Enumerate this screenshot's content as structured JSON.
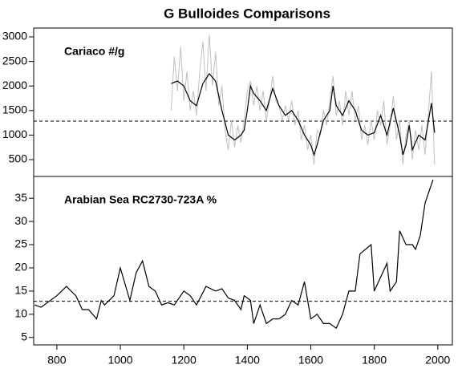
{
  "chart_data": [
    {
      "type": "line",
      "title": "G Bulloides Comparisons",
      "annotation": "Cariaco #/g",
      "xlim": [
        727,
        2046
      ],
      "ylim": [
        157,
        3180
      ],
      "yticks": [
        500,
        1000,
        1500,
        2000,
        2500,
        3000
      ],
      "hline": 1284,
      "series": [
        {
          "color": "#c0c0c0",
          "x": [
            1160,
            1170,
            1180,
            1190,
            1200,
            1210,
            1220,
            1230,
            1240,
            1250,
            1260,
            1270,
            1280,
            1290,
            1300,
            1310,
            1320,
            1330,
            1340,
            1350,
            1360,
            1370,
            1380,
            1390,
            1400,
            1410,
            1420,
            1430,
            1440,
            1450,
            1460,
            1470,
            1480,
            1490,
            1500,
            1510,
            1520,
            1530,
            1540,
            1550,
            1560,
            1570,
            1580,
            1590,
            1600,
            1610,
            1620,
            1630,
            1640,
            1650,
            1660,
            1670,
            1680,
            1690,
            1700,
            1710,
            1720,
            1730,
            1740,
            1750,
            1760,
            1770,
            1780,
            1790,
            1800,
            1810,
            1820,
            1830,
            1840,
            1850,
            1860,
            1870,
            1880,
            1890,
            1900,
            1910,
            1920,
            1930,
            1940,
            1950,
            1960,
            1970,
            1980,
            1990
          ],
          "values": [
            1500,
            2600,
            1900,
            2800,
            1700,
            2300,
            1500,
            1900,
            1400,
            2300,
            2900,
            1900,
            3050,
            2000,
            2700,
            1600,
            2000,
            1100,
            700,
            1300,
            750,
            1200,
            850,
            1300,
            1900,
            2100,
            1600,
            2000,
            1500,
            1900,
            1300,
            1700,
            2200,
            1700,
            1600,
            1300,
            1600,
            1300,
            1700,
            1200,
            1500,
            900,
            1200,
            700,
            1000,
            400,
            1100,
            1000,
            1500,
            1200,
            1700,
            2200,
            1400,
            1700,
            1200,
            1900,
            1400,
            1900,
            1300,
            1600,
            900,
            1200,
            800,
            1300,
            900,
            1500,
            1200,
            1700,
            800,
            1200,
            1800,
            900,
            1300,
            400,
            1000,
            1300,
            500,
            1100,
            700,
            1200,
            600,
            1400,
            2300,
            400
          ]
        },
        {
          "color": "#000000",
          "x": [
            1160,
            1180,
            1200,
            1220,
            1240,
            1260,
            1280,
            1300,
            1320,
            1340,
            1360,
            1380,
            1390,
            1400,
            1410,
            1420,
            1440,
            1460,
            1480,
            1500,
            1520,
            1540,
            1560,
            1580,
            1600,
            1610,
            1620,
            1640,
            1660,
            1670,
            1680,
            1700,
            1720,
            1740,
            1760,
            1780,
            1800,
            1820,
            1840,
            1860,
            1880,
            1890,
            1900,
            1910,
            1920,
            1940,
            1960,
            1980,
            1990
          ],
          "values": [
            2050,
            2100,
            2000,
            1700,
            1600,
            2050,
            2250,
            2100,
            1500,
            1000,
            900,
            1000,
            1100,
            1500,
            2000,
            1850,
            1700,
            1500,
            1950,
            1600,
            1400,
            1500,
            1300,
            1000,
            800,
            600,
            800,
            1300,
            1500,
            2000,
            1600,
            1400,
            1700,
            1500,
            1100,
            1000,
            1050,
            1400,
            1000,
            1550,
            1000,
            600,
            800,
            1200,
            700,
            1000,
            900,
            1650,
            1050
          ]
        }
      ]
    },
    {
      "type": "line",
      "annotation": "Arabian Sea RC2730-723A %",
      "xlim": [
        727,
        2046
      ],
      "xticks": [
        800,
        1000,
        1200,
        1400,
        1600,
        1800,
        2000
      ],
      "ylim": [
        3.4,
        39.7
      ],
      "yticks": [
        5,
        10,
        15,
        20,
        25,
        30,
        35
      ],
      "hline": 12.8,
      "series": [
        {
          "color": "#000000",
          "x": [
            730,
            750,
            800,
            830,
            860,
            880,
            900,
            925,
            940,
            950,
            980,
            1000,
            1030,
            1050,
            1070,
            1090,
            1110,
            1130,
            1150,
            1170,
            1200,
            1220,
            1240,
            1270,
            1300,
            1320,
            1340,
            1360,
            1380,
            1390,
            1410,
            1420,
            1440,
            1460,
            1480,
            1500,
            1520,
            1540,
            1560,
            1580,
            1600,
            1620,
            1640,
            1660,
            1680,
            1700,
            1720,
            1740,
            1755,
            1790,
            1800,
            1820,
            1840,
            1850,
            1870,
            1880,
            1900,
            1920,
            1930,
            1945,
            1960,
            1985
          ],
          "values": [
            12,
            11.5,
            14,
            16,
            14,
            11,
            11,
            9,
            13,
            12,
            14,
            20,
            13,
            19,
            21.5,
            16,
            15,
            12,
            12.5,
            12,
            15,
            14,
            12,
            16,
            15,
            15.5,
            13.5,
            13,
            11,
            14,
            13,
            8,
            12,
            8,
            9,
            9,
            10,
            13,
            12,
            17,
            9,
            10,
            8,
            8,
            7,
            10,
            15,
            15,
            23,
            25,
            15,
            18,
            21,
            15,
            17,
            28,
            25,
            25,
            24,
            27,
            34,
            39
          ]
        }
      ]
    }
  ]
}
